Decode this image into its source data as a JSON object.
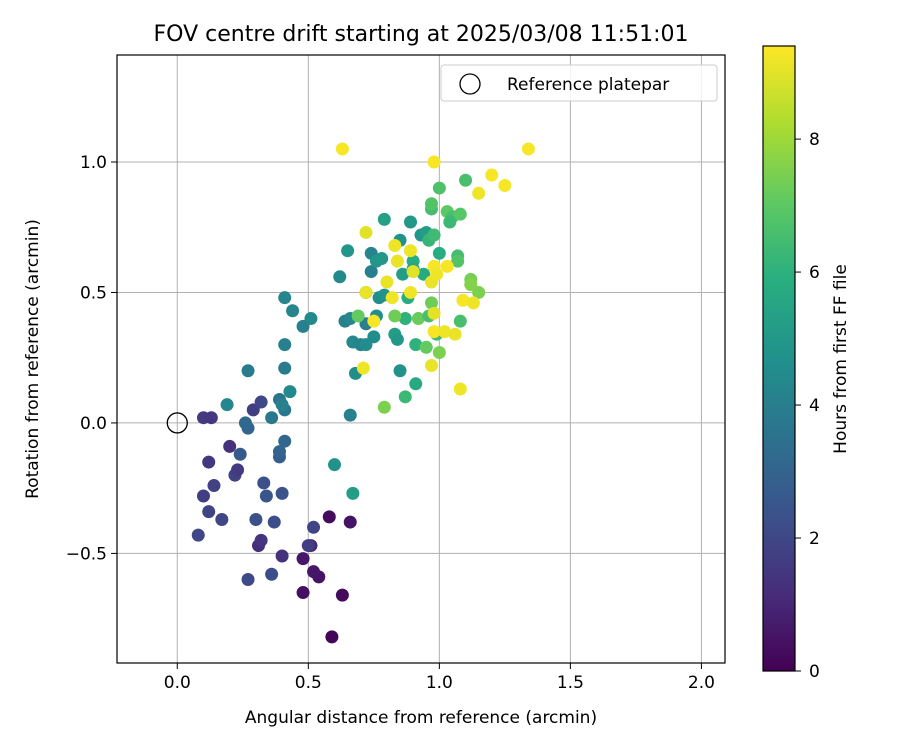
{
  "chart_data": {
    "type": "scatter",
    "title": "FOV centre drift starting at 2025/03/08 11:51:01",
    "xlabel": "Angular distance from reference (arcmin)",
    "ylabel": "Rotation from reference (arcmin)",
    "xlim": [
      -0.23,
      2.09
    ],
    "ylim": [
      -0.92,
      1.41
    ],
    "xticks": [
      0.0,
      0.5,
      1.0,
      1.5,
      2.0
    ],
    "xtick_labels": [
      "0.0",
      "0.5",
      "1.0",
      "1.5",
      "2.0"
    ],
    "yticks": [
      -0.5,
      0.0,
      0.5,
      1.0
    ],
    "ytick_labels": [
      "−0.5",
      "0.0",
      "0.5",
      "1.0"
    ],
    "grid": true,
    "legend": {
      "position": "top-right",
      "entries": [
        "Reference platepar"
      ]
    },
    "reference_point": {
      "x": 0.0,
      "y": 0.0,
      "label": "Reference platepar"
    },
    "colorbar": {
      "label": "Hours from first FF file",
      "range": [
        0,
        9.4
      ],
      "ticks": [
        0,
        2,
        4,
        6,
        8
      ],
      "tick_labels": [
        "0",
        "2",
        "4",
        "6",
        "8"
      ],
      "colormap": "viridis"
    },
    "points": [
      {
        "x": 0.59,
        "y": -0.82,
        "h": 0.1
      },
      {
        "x": 0.63,
        "y": -0.66,
        "h": 0.3
      },
      {
        "x": 0.48,
        "y": -0.65,
        "h": 0.4
      },
      {
        "x": 0.54,
        "y": -0.59,
        "h": 0.5
      },
      {
        "x": 0.52,
        "y": -0.57,
        "h": 0.6
      },
      {
        "x": 0.48,
        "y": -0.52,
        "h": 0.6
      },
      {
        "x": 0.58,
        "y": -0.36,
        "h": 0.3
      },
      {
        "x": 0.66,
        "y": -0.38,
        "h": 0.5
      },
      {
        "x": 0.51,
        "y": -0.47,
        "h": 1.0
      },
      {
        "x": 0.4,
        "y": -0.51,
        "h": 1.3
      },
      {
        "x": 0.31,
        "y": -0.47,
        "h": 1.2
      },
      {
        "x": 0.32,
        "y": -0.45,
        "h": 1.4
      },
      {
        "x": 0.5,
        "y": -0.47,
        "h": 1.7
      },
      {
        "x": 0.52,
        "y": -0.4,
        "h": 1.9
      },
      {
        "x": 0.27,
        "y": -0.6,
        "h": 2.1
      },
      {
        "x": 0.36,
        "y": -0.58,
        "h": 2.2
      },
      {
        "x": 0.08,
        "y": -0.43,
        "h": 2.0
      },
      {
        "x": 0.12,
        "y": -0.34,
        "h": 1.9
      },
      {
        "x": 0.17,
        "y": -0.37,
        "h": 2.0
      },
      {
        "x": 0.1,
        "y": -0.28,
        "h": 1.7
      },
      {
        "x": 0.14,
        "y": -0.24,
        "h": 1.8
      },
      {
        "x": 0.3,
        "y": -0.37,
        "h": 2.3
      },
      {
        "x": 0.37,
        "y": -0.38,
        "h": 2.2
      },
      {
        "x": 0.34,
        "y": -0.28,
        "h": 2.5
      },
      {
        "x": 0.33,
        "y": -0.23,
        "h": 2.3
      },
      {
        "x": 0.4,
        "y": -0.27,
        "h": 2.4
      },
      {
        "x": 0.22,
        "y": -0.2,
        "h": 1.8
      },
      {
        "x": 0.23,
        "y": -0.18,
        "h": 1.6
      },
      {
        "x": 0.12,
        "y": -0.15,
        "h": 1.5
      },
      {
        "x": 0.2,
        "y": -0.09,
        "h": 1.3
      },
      {
        "x": 0.24,
        "y": -0.12,
        "h": 2.6
      },
      {
        "x": 0.39,
        "y": -0.13,
        "h": 2.8
      },
      {
        "x": 0.39,
        "y": -0.11,
        "h": 3.0
      },
      {
        "x": 0.41,
        "y": -0.07,
        "h": 3.1
      },
      {
        "x": 0.27,
        "y": -0.02,
        "h": 3.0
      },
      {
        "x": 0.26,
        "y": 0.0,
        "h": 3.2
      },
      {
        "x": 0.1,
        "y": 0.02,
        "h": 1.6
      },
      {
        "x": 0.13,
        "y": 0.02,
        "h": 1.5
      },
      {
        "x": 0.29,
        "y": 0.05,
        "h": 1.7
      },
      {
        "x": 0.32,
        "y": 0.08,
        "h": 2.0
      },
      {
        "x": 0.36,
        "y": 0.02,
        "h": 3.7
      },
      {
        "x": 0.39,
        "y": 0.09,
        "h": 3.6
      },
      {
        "x": 0.41,
        "y": 0.05,
        "h": 3.8
      },
      {
        "x": 0.4,
        "y": 0.07,
        "h": 4.1
      },
      {
        "x": 0.19,
        "y": 0.07,
        "h": 4.3
      },
      {
        "x": 0.43,
        "y": 0.12,
        "h": 4.4
      },
      {
        "x": 0.27,
        "y": 0.2,
        "h": 3.9
      },
      {
        "x": 0.41,
        "y": 0.21,
        "h": 3.9
      },
      {
        "x": 0.41,
        "y": 0.3,
        "h": 4.0
      },
      {
        "x": 0.48,
        "y": 0.37,
        "h": 4.0
      },
      {
        "x": 0.44,
        "y": 0.43,
        "h": 4.2
      },
      {
        "x": 0.51,
        "y": 0.4,
        "h": 4.4
      },
      {
        "x": 0.41,
        "y": 0.48,
        "h": 4.3
      },
      {
        "x": 0.64,
        "y": 0.39,
        "h": 4.1
      },
      {
        "x": 0.66,
        "y": 0.4,
        "h": 4.3
      },
      {
        "x": 0.67,
        "y": 0.31,
        "h": 4.4
      },
      {
        "x": 0.7,
        "y": 0.3,
        "h": 4.2
      },
      {
        "x": 0.72,
        "y": 0.3,
        "h": 4.5
      },
      {
        "x": 0.68,
        "y": 0.19,
        "h": 4.6
      },
      {
        "x": 0.66,
        "y": 0.03,
        "h": 4.1
      },
      {
        "x": 0.6,
        "y": -0.16,
        "h": 4.8
      },
      {
        "x": 0.67,
        "y": -0.27,
        "h": 5.2
      },
      {
        "x": 0.62,
        "y": 0.56,
        "h": 4.4
      },
      {
        "x": 0.65,
        "y": 0.66,
        "h": 4.9
      },
      {
        "x": 0.74,
        "y": 0.58,
        "h": 4.0
      },
      {
        "x": 0.74,
        "y": 0.65,
        "h": 4.2
      },
      {
        "x": 0.76,
        "y": 0.62,
        "h": 4.9
      },
      {
        "x": 0.78,
        "y": 0.63,
        "h": 5.0
      },
      {
        "x": 0.72,
        "y": 0.5,
        "h": 5.4
      },
      {
        "x": 0.77,
        "y": 0.48,
        "h": 4.6
      },
      {
        "x": 0.79,
        "y": 0.49,
        "h": 4.8
      },
      {
        "x": 0.76,
        "y": 0.41,
        "h": 4.5
      },
      {
        "x": 0.72,
        "y": 0.38,
        "h": 4.0
      },
      {
        "x": 0.75,
        "y": 0.33,
        "h": 4.6
      },
      {
        "x": 0.83,
        "y": 0.34,
        "h": 5.2
      },
      {
        "x": 0.84,
        "y": 0.32,
        "h": 5.0
      },
      {
        "x": 0.85,
        "y": 0.2,
        "h": 4.8
      },
      {
        "x": 0.91,
        "y": 0.15,
        "h": 5.7
      },
      {
        "x": 0.87,
        "y": 0.1,
        "h": 6.3
      },
      {
        "x": 0.79,
        "y": 0.78,
        "h": 5.3
      },
      {
        "x": 0.85,
        "y": 0.7,
        "h": 4.7
      },
      {
        "x": 0.89,
        "y": 0.77,
        "h": 5.0
      },
      {
        "x": 0.86,
        "y": 0.57,
        "h": 5.2
      },
      {
        "x": 0.9,
        "y": 0.62,
        "h": 5.8
      },
      {
        "x": 0.93,
        "y": 0.72,
        "h": 4.9
      },
      {
        "x": 0.95,
        "y": 0.73,
        "h": 5.2
      },
      {
        "x": 0.96,
        "y": 0.7,
        "h": 6.2
      },
      {
        "x": 0.98,
        "y": 0.72,
        "h": 6.4
      },
      {
        "x": 0.97,
        "y": 0.82,
        "h": 6.5
      },
      {
        "x": 0.97,
        "y": 0.84,
        "h": 6.8
      },
      {
        "x": 1.0,
        "y": 0.9,
        "h": 6.7
      },
      {
        "x": 1.1,
        "y": 0.93,
        "h": 6.6
      },
      {
        "x": 1.03,
        "y": 0.81,
        "h": 7.0
      },
      {
        "x": 1.05,
        "y": 0.79,
        "h": 6.6
      },
      {
        "x": 1.08,
        "y": 0.8,
        "h": 6.9
      },
      {
        "x": 1.04,
        "y": 0.77,
        "h": 6.3
      },
      {
        "x": 1.0,
        "y": 0.65,
        "h": 5.8
      },
      {
        "x": 1.07,
        "y": 0.64,
        "h": 6.5
      },
      {
        "x": 1.07,
        "y": 0.62,
        "h": 6.8
      },
      {
        "x": 0.9,
        "y": 0.59,
        "h": 5.5
      },
      {
        "x": 0.94,
        "y": 0.57,
        "h": 5.7
      },
      {
        "x": 0.88,
        "y": 0.48,
        "h": 5.8
      },
      {
        "x": 0.87,
        "y": 0.4,
        "h": 6.0
      },
      {
        "x": 0.92,
        "y": 0.4,
        "h": 7.2
      },
      {
        "x": 0.96,
        "y": 0.41,
        "h": 6.6
      },
      {
        "x": 0.97,
        "y": 0.46,
        "h": 7.3
      },
      {
        "x": 0.91,
        "y": 0.3,
        "h": 6.0
      },
      {
        "x": 0.95,
        "y": 0.29,
        "h": 7.1
      },
      {
        "x": 0.99,
        "y": 0.34,
        "h": 6.4
      },
      {
        "x": 1.0,
        "y": 0.27,
        "h": 7.5
      },
      {
        "x": 1.08,
        "y": 0.39,
        "h": 6.6
      },
      {
        "x": 1.12,
        "y": 0.55,
        "h": 7.4
      },
      {
        "x": 1.12,
        "y": 0.53,
        "h": 7.6
      },
      {
        "x": 1.15,
        "y": 0.5,
        "h": 7.5
      },
      {
        "x": 0.79,
        "y": 0.06,
        "h": 7.5
      },
      {
        "x": 0.83,
        "y": 0.41,
        "h": 7.3
      },
      {
        "x": 0.69,
        "y": 0.41,
        "h": 7.1
      },
      {
        "x": 0.63,
        "y": 1.05,
        "h": 9.3
      },
      {
        "x": 0.98,
        "y": 1.0,
        "h": 9.3
      },
      {
        "x": 1.34,
        "y": 1.05,
        "h": 9.3
      },
      {
        "x": 1.2,
        "y": 0.95,
        "h": 9.3
      },
      {
        "x": 1.25,
        "y": 0.91,
        "h": 9.3
      },
      {
        "x": 1.15,
        "y": 0.88,
        "h": 9.2
      },
      {
        "x": 0.72,
        "y": 0.73,
        "h": 9.0
      },
      {
        "x": 0.83,
        "y": 0.68,
        "h": 9.2
      },
      {
        "x": 0.84,
        "y": 0.62,
        "h": 9.1
      },
      {
        "x": 0.89,
        "y": 0.66,
        "h": 9.2
      },
      {
        "x": 0.9,
        "y": 0.58,
        "h": 9.0
      },
      {
        "x": 0.98,
        "y": 0.6,
        "h": 9.3
      },
      {
        "x": 0.97,
        "y": 0.54,
        "h": 9.1
      },
      {
        "x": 0.99,
        "y": 0.57,
        "h": 9.2
      },
      {
        "x": 1.03,
        "y": 0.6,
        "h": 9.3
      },
      {
        "x": 0.8,
        "y": 0.54,
        "h": 9.1
      },
      {
        "x": 0.72,
        "y": 0.5,
        "h": 9.1
      },
      {
        "x": 0.82,
        "y": 0.48,
        "h": 9.2
      },
      {
        "x": 0.89,
        "y": 0.5,
        "h": 9.2
      },
      {
        "x": 0.75,
        "y": 0.39,
        "h": 9.3
      },
      {
        "x": 0.98,
        "y": 0.42,
        "h": 9.0
      },
      {
        "x": 0.98,
        "y": 0.35,
        "h": 9.3
      },
      {
        "x": 1.02,
        "y": 0.35,
        "h": 9.2
      },
      {
        "x": 1.06,
        "y": 0.34,
        "h": 9.1
      },
      {
        "x": 1.09,
        "y": 0.47,
        "h": 9.3
      },
      {
        "x": 1.13,
        "y": 0.46,
        "h": 9.2
      },
      {
        "x": 0.97,
        "y": 0.22,
        "h": 9.1
      },
      {
        "x": 0.71,
        "y": 0.21,
        "h": 9.2
      },
      {
        "x": 1.08,
        "y": 0.13,
        "h": 9.2
      }
    ]
  }
}
